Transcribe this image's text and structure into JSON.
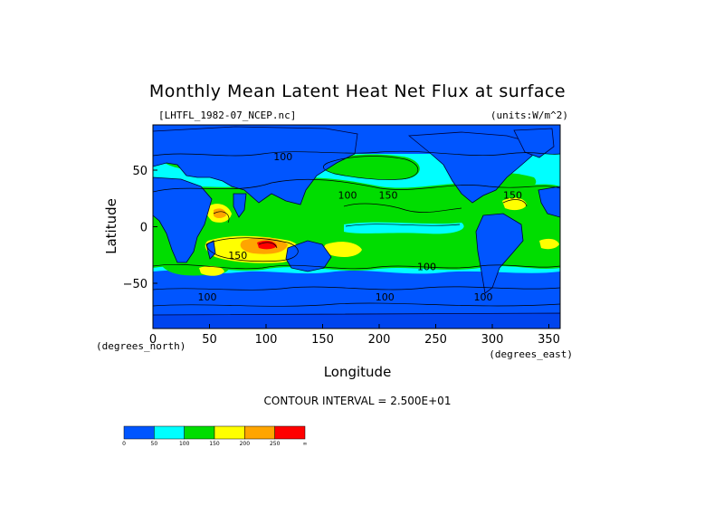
{
  "chart_data": {
    "type": "heatmap",
    "title": "Monthly Mean Latent Heat Net Flux at surface",
    "subtitle_left": "[LHTFL_1982-07_NCEP.nc]",
    "subtitle_right": "(units:W/m^2)",
    "xlabel": "Longitude",
    "ylabel": "Latitude",
    "x_unit_label": "(degrees_east)",
    "y_unit_label": "(degrees_north)",
    "xlim": [
      0,
      360
    ],
    "ylim": [
      -90,
      90
    ],
    "x_ticks": [
      {
        "value": 0,
        "label": "0"
      },
      {
        "value": 50,
        "label": "50"
      },
      {
        "value": 100,
        "label": "100"
      },
      {
        "value": 150,
        "label": "150"
      },
      {
        "value": 200,
        "label": "200"
      },
      {
        "value": 250,
        "label": "250"
      },
      {
        "value": 300,
        "label": "300"
      },
      {
        "value": 350,
        "label": "350"
      }
    ],
    "y_ticks": [
      {
        "value": 50,
        "label": "50"
      },
      {
        "value": 0,
        "label": "0"
      },
      {
        "value": -50,
        "label": "−50"
      }
    ],
    "contour_interval_text": "CONTOUR INTERVAL = 2.500E+01",
    "contour_labels": [
      {
        "lon": 115,
        "lat": 62,
        "text": "100"
      },
      {
        "lon": 172,
        "lat": 28,
        "text": "100"
      },
      {
        "lon": 208,
        "lat": 28,
        "text": "150"
      },
      {
        "lon": 318,
        "lat": 28,
        "text": "150"
      },
      {
        "lon": 75,
        "lat": -25,
        "text": "150"
      },
      {
        "lon": 242,
        "lat": -35,
        "text": "100"
      },
      {
        "lon": 48,
        "lat": -62,
        "text": "100"
      },
      {
        "lon": 205,
        "lat": -62,
        "text": "100"
      },
      {
        "lon": 292,
        "lat": -62,
        "text": "100"
      }
    ],
    "colorbar": {
      "colors": [
        "#0055ff",
        "#00ffff",
        "#00dd00",
        "#ffff00",
        "#ffa500",
        "#ff0000"
      ],
      "tick_labels": [
        "0",
        "50",
        "100",
        "150",
        "200",
        "250",
        "∞"
      ]
    },
    "grid": false,
    "legend": "bottom-left colorbar"
  }
}
